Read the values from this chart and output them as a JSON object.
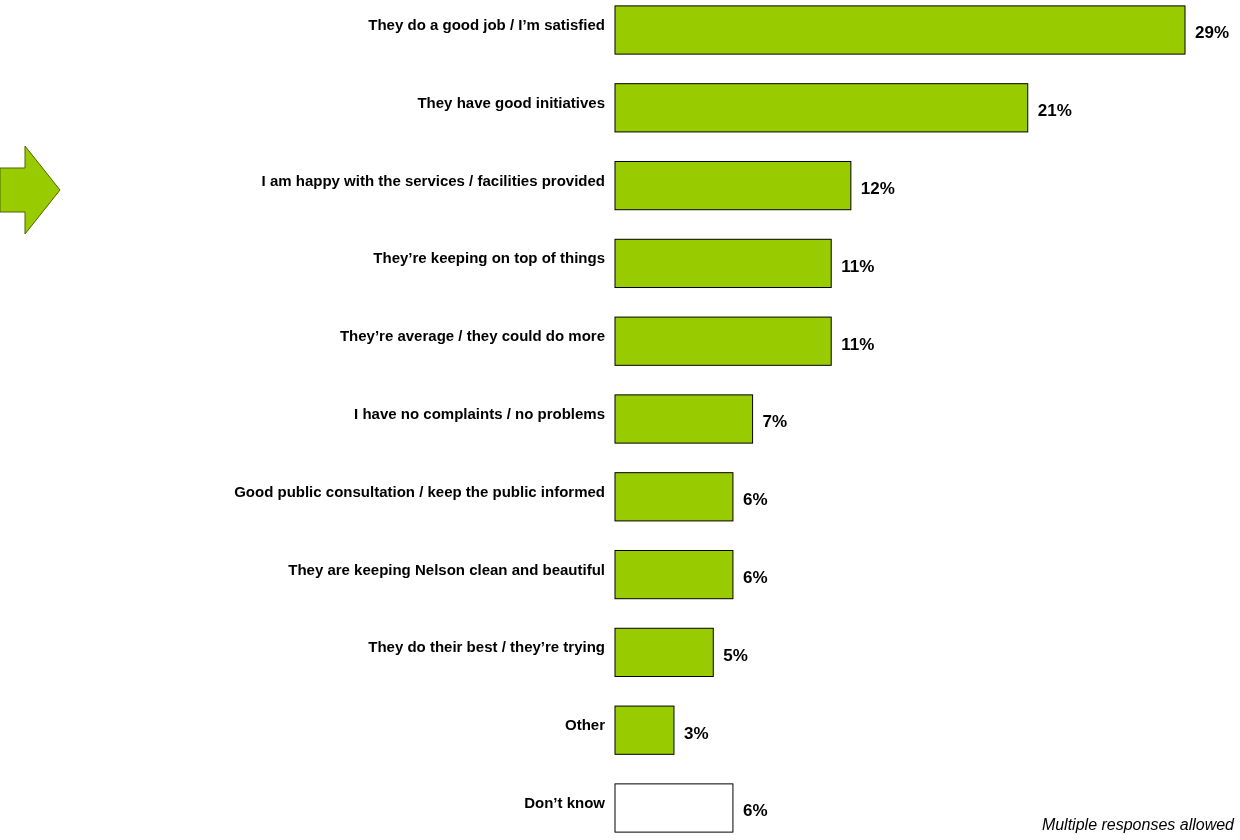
{
  "chart_data": {
    "type": "bar",
    "orientation": "horizontal",
    "categories": [
      "They do a good job / I’m satisfied",
      "They have good initiatives",
      "I am happy with the services / facilities provided",
      "They’re keeping on top of things",
      "They’re average / they could do more",
      "I have no complaints / no problems",
      "Good public consultation / keep the public informed",
      "They are keeping Nelson clean and beautiful",
      "They do their best / they’re trying",
      "Other",
      "Don’t know"
    ],
    "values": [
      29,
      21,
      12,
      11,
      11,
      7,
      6,
      6,
      5,
      3,
      6
    ],
    "value_labels": [
      "29%",
      "21%",
      "12%",
      "11%",
      "11%",
      "7%",
      "6%",
      "6%",
      "5%",
      "3%",
      "6%"
    ],
    "colors": [
      "#99cc00",
      "#99cc00",
      "#99cc00",
      "#99cc00",
      "#99cc00",
      "#99cc00",
      "#99cc00",
      "#99cc00",
      "#99cc00",
      "#99cc00",
      "#ffffff"
    ],
    "annotations": [
      "Multiple responses allowed"
    ]
  }
}
